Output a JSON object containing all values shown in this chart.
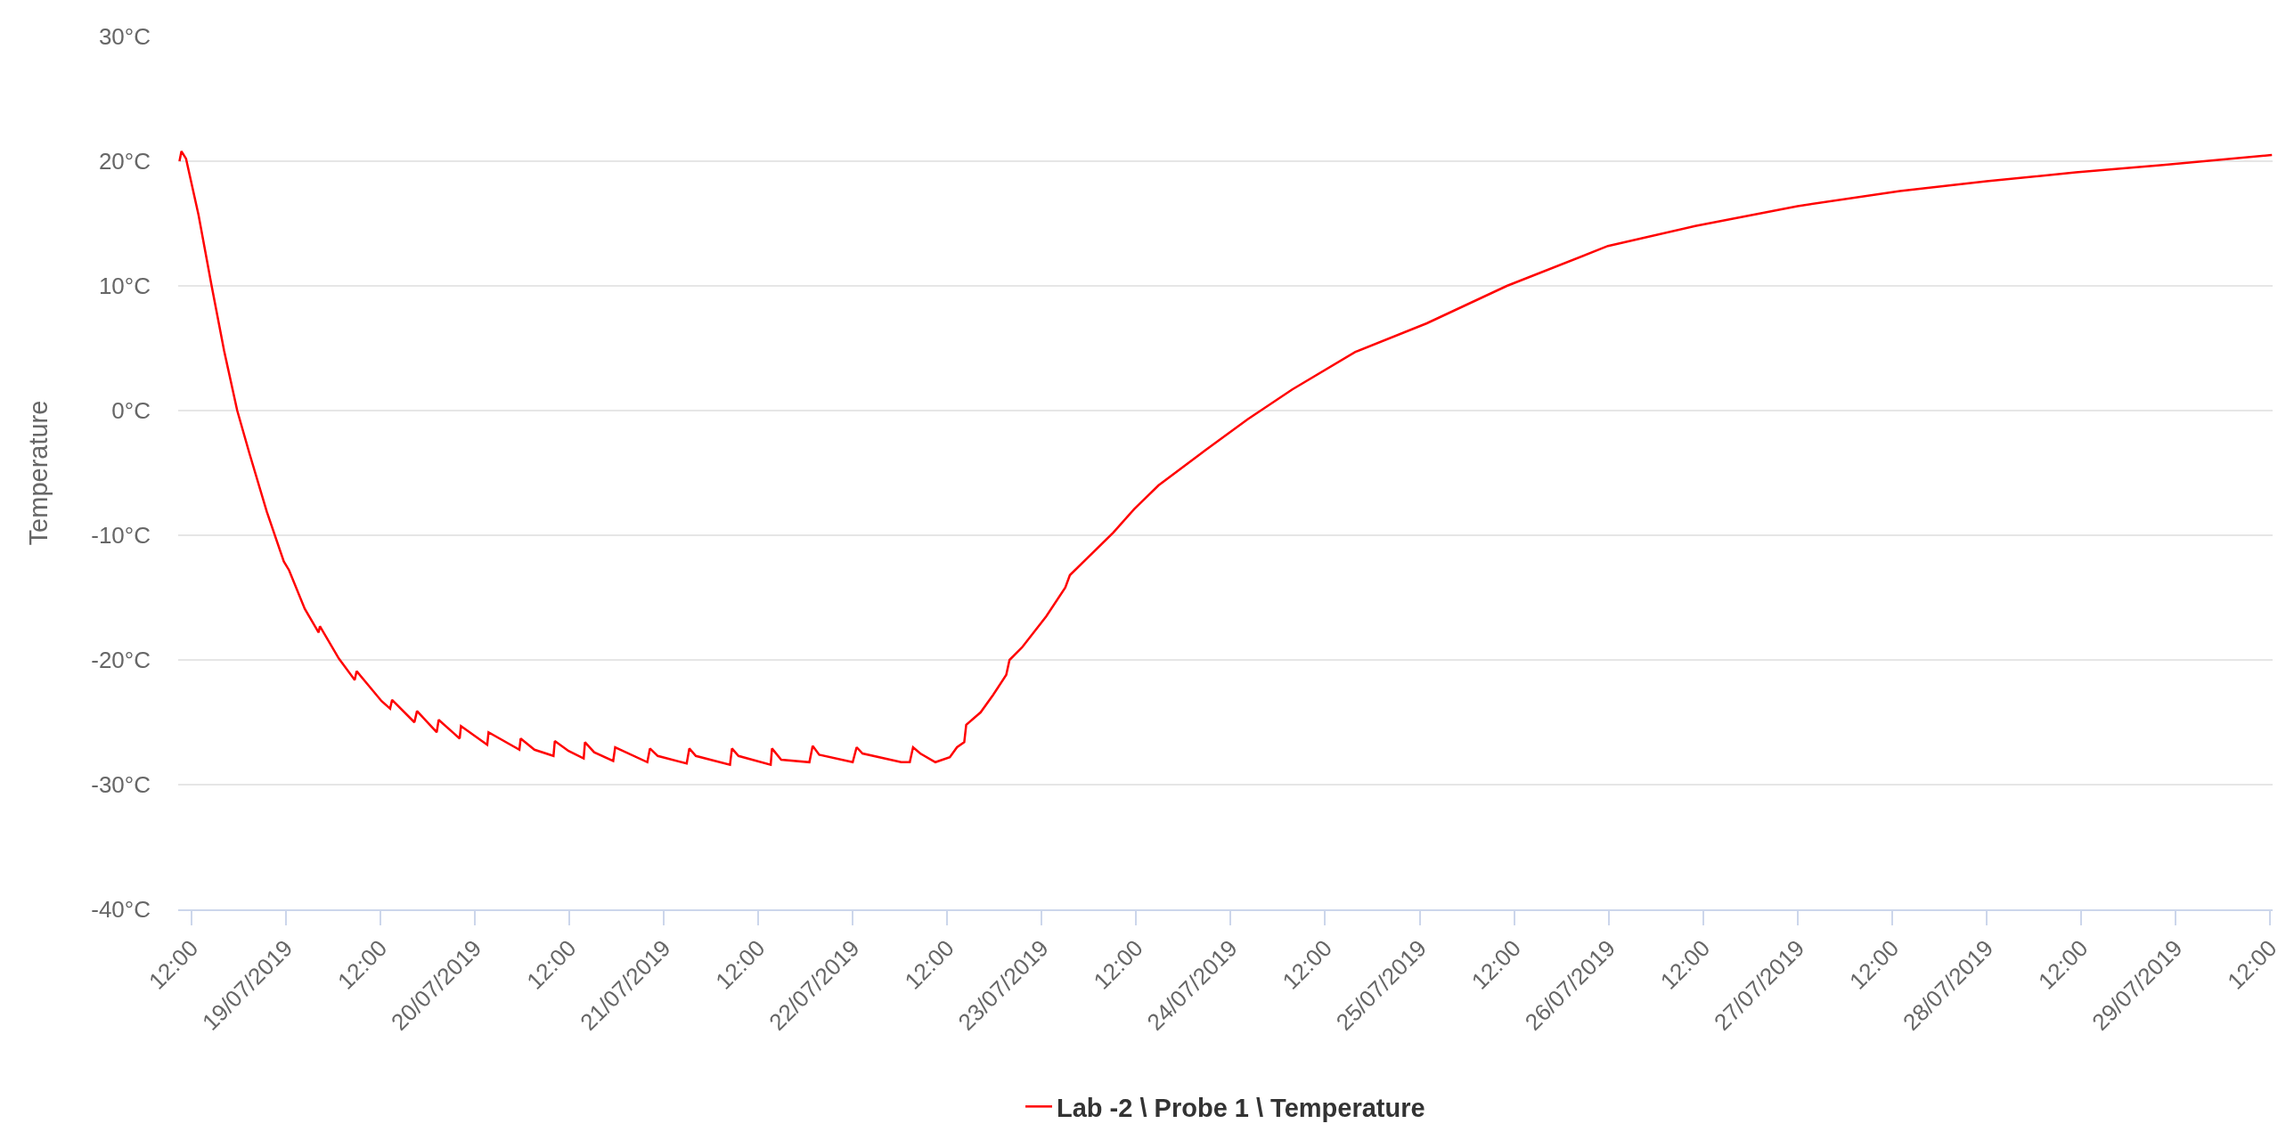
{
  "chart_data": {
    "type": "line",
    "ylabel": "Temperature",
    "legend": "bottom",
    "grid": "y",
    "marker": "none",
    "line_style": "solid",
    "xlim": [
      "2019-07-18T10:20",
      "2019-07-29T12:20"
    ],
    "ylim": [
      -40,
      30
    ],
    "yticks": [
      {
        "value": -40,
        "label": "-40°C"
      },
      {
        "value": -30,
        "label": "-30°C"
      },
      {
        "value": -20,
        "label": "-20°C"
      },
      {
        "value": -10,
        "label": "-10°C"
      },
      {
        "value": 0,
        "label": "0°C"
      },
      {
        "value": 10,
        "label": "10°C"
      },
      {
        "value": 20,
        "label": "20°C"
      },
      {
        "value": 30,
        "label": "30°C"
      }
    ],
    "xticks": [
      {
        "value": "2019-07-18T12:00",
        "label": "12:00"
      },
      {
        "value": "2019-07-19T00:00",
        "label": "19/07/2019"
      },
      {
        "value": "2019-07-19T12:00",
        "label": "12:00"
      },
      {
        "value": "2019-07-20T00:00",
        "label": "20/07/2019"
      },
      {
        "value": "2019-07-20T12:00",
        "label": "12:00"
      },
      {
        "value": "2019-07-21T00:00",
        "label": "21/07/2019"
      },
      {
        "value": "2019-07-21T12:00",
        "label": "12:00"
      },
      {
        "value": "2019-07-22T00:00",
        "label": "22/07/2019"
      },
      {
        "value": "2019-07-22T12:00",
        "label": "12:00"
      },
      {
        "value": "2019-07-23T00:00",
        "label": "23/07/2019"
      },
      {
        "value": "2019-07-23T12:00",
        "label": "12:00"
      },
      {
        "value": "2019-07-24T00:00",
        "label": "24/07/2019"
      },
      {
        "value": "2019-07-24T12:00",
        "label": "12:00"
      },
      {
        "value": "2019-07-25T00:00",
        "label": "25/07/2019"
      },
      {
        "value": "2019-07-25T12:00",
        "label": "12:00"
      },
      {
        "value": "2019-07-26T00:00",
        "label": "26/07/2019"
      },
      {
        "value": "2019-07-26T12:00",
        "label": "12:00"
      },
      {
        "value": "2019-07-27T00:00",
        "label": "27/07/2019"
      },
      {
        "value": "2019-07-27T12:00",
        "label": "12:00"
      },
      {
        "value": "2019-07-28T00:00",
        "label": "28/07/2019"
      },
      {
        "value": "2019-07-28T12:00",
        "label": "12:00"
      },
      {
        "value": "2019-07-29T00:00",
        "label": "29/07/2019"
      },
      {
        "value": "2019-07-29T12:00",
        "label": "12:00"
      }
    ],
    "x": [
      "2019-07-18T10:30",
      "2019-07-18T10:45",
      "2019-07-18T11:20",
      "2019-07-18T12:55",
      "2019-07-18T14:35",
      "2019-07-18T16:10",
      "2019-07-18T17:50",
      "2019-07-18T19:25",
      "2019-07-18T21:35",
      "2019-07-18T23:45",
      "2019-07-19T00:25",
      "2019-07-19T02:25",
      "2019-07-19T04:10",
      "2019-07-19T04:20",
      "2019-07-19T06:45",
      "2019-07-19T08:45",
      "2019-07-19T09:00",
      "2019-07-19T12:10",
      "2019-07-19T13:15",
      "2019-07-19T13:30",
      "2019-07-19T16:20",
      "2019-07-19T16:40",
      "2019-07-19T19:10",
      "2019-07-19T19:25",
      "2019-07-19T22:05",
      "2019-07-19T22:15",
      "2019-07-20T01:35",
      "2019-07-20T01:45",
      "2019-07-20T05:40",
      "2019-07-20T05:50",
      "2019-07-20T07:35",
      "2019-07-20T10:00",
      "2019-07-20T10:10",
      "2019-07-20T11:55",
      "2019-07-20T13:50",
      "2019-07-20T14:00",
      "2019-07-20T15:10",
      "2019-07-20T17:35",
      "2019-07-20T17:50",
      "2019-07-20T21:55",
      "2019-07-20T22:15",
      "2019-07-20T23:15",
      "2019-07-21T02:55",
      "2019-07-21T03:15",
      "2019-07-21T04:05",
      "2019-07-21T08:25",
      "2019-07-21T08:40",
      "2019-07-21T09:30",
      "2019-07-21T13:35",
      "2019-07-21T13:45",
      "2019-07-21T14:55",
      "2019-07-21T18:30",
      "2019-07-21T18:55",
      "2019-07-21T19:45",
      "2019-07-22T00:00",
      "2019-07-22T00:30",
      "2019-07-22T01:15",
      "2019-07-22T06:10",
      "2019-07-22T07:15",
      "2019-07-22T07:40",
      "2019-07-22T08:35",
      "2019-07-22T10:30",
      "2019-07-22T12:20",
      "2019-07-22T13:15",
      "2019-07-22T14:10",
      "2019-07-22T14:25",
      "2019-07-22T16:15",
      "2019-07-22T17:50",
      "2019-07-22T19:30",
      "2019-07-22T19:55",
      "2019-07-22T21:30",
      "2019-07-23T00:35",
      "2019-07-23T03:00",
      "2019-07-23T03:35",
      "2019-07-23T09:05",
      "2019-07-23T11:45",
      "2019-07-23T14:50",
      "2019-07-23T20:45",
      "2019-07-24T02:10",
      "2019-07-24T07:50",
      "2019-07-24T15:50",
      "2019-07-25T00:55",
      "2019-07-25T11:05",
      "2019-07-25T23:55",
      "2019-07-26T11:00",
      "2019-07-27T00:00",
      "2019-07-27T13:00",
      "2019-07-28T00:00",
      "2019-07-28T11:20",
      "2019-07-28T22:25",
      "2019-07-29T12:15"
    ],
    "series": [
      {
        "name": "Lab -2 \\ Probe 1 \\ Temperature",
        "color": "#ff0000",
        "values": [
          20.0,
          20.8,
          20.2,
          15.7,
          10.0,
          4.8,
          0.0,
          -3.5,
          -8.1,
          -12.1,
          -12.8,
          -15.9,
          -17.8,
          -17.3,
          -19.9,
          -21.6,
          -20.9,
          -23.3,
          -23.9,
          -23.2,
          -25.0,
          -24.1,
          -25.8,
          -24.8,
          -26.3,
          -25.3,
          -26.8,
          -25.8,
          -27.2,
          -26.3,
          -27.2,
          -27.7,
          -26.5,
          -27.3,
          -27.9,
          -26.6,
          -27.4,
          -28.1,
          -27.0,
          -28.2,
          -27.1,
          -27.7,
          -28.3,
          -27.1,
          -27.7,
          -28.4,
          -27.1,
          -27.7,
          -28.4,
          -27.1,
          -28.0,
          -28.2,
          -26.9,
          -27.6,
          -28.2,
          -27.0,
          -27.5,
          -28.2,
          -28.2,
          -27.0,
          -27.5,
          -28.2,
          -27.8,
          -27.0,
          -26.6,
          -25.2,
          -24.2,
          -22.8,
          -21.2,
          -20.0,
          -19.0,
          -16.5,
          -14.2,
          -13.2,
          -9.8,
          -7.9,
          -6.0,
          -3.2,
          -0.7,
          1.7,
          4.7,
          7.0,
          10.0,
          13.2,
          14.8,
          16.4,
          17.6,
          18.4,
          19.1,
          19.7,
          20.5
        ]
      }
    ]
  }
}
